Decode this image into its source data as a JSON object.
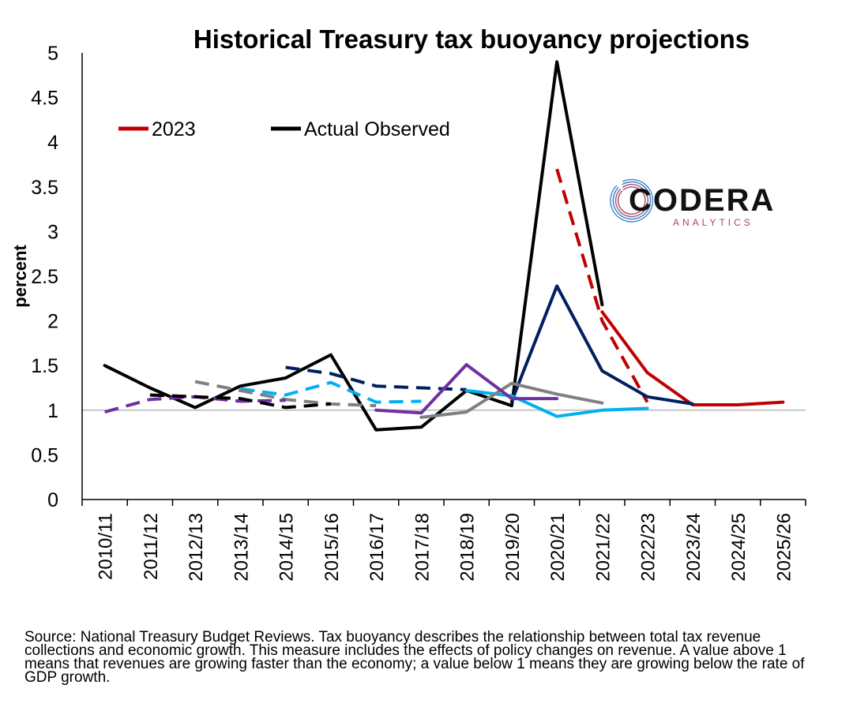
{
  "chart_data": {
    "type": "line",
    "title": "Historical Treasury tax buoyancy projections",
    "xlabel": "",
    "ylabel": "percent",
    "ylim": [
      0,
      5
    ],
    "yticks": [
      "0",
      "0.5",
      "1",
      "1.5",
      "2",
      "2.5",
      "3",
      "3.5",
      "4",
      "4.5",
      "5"
    ],
    "categories": [
      "2010/11",
      "2011/12",
      "2012/13",
      "2013/14",
      "2014/15",
      "2015/16",
      "2016/17",
      "2017/18",
      "2018/19",
      "2019/20",
      "2020/21",
      "2021/22",
      "2022/23",
      "2023/24",
      "2024/25",
      "2025/26"
    ],
    "legend": {
      "position": "top-left",
      "entries": [
        "2023",
        "Actual Observed"
      ]
    },
    "reference_line": {
      "value": 1,
      "color": "#c8c8c8"
    },
    "series": [
      {
        "name": "Actual Observed",
        "color": "#000000",
        "segments": [
          {
            "style": "solid",
            "points": [
              [
                0,
                1.5
              ],
              [
                1,
                1.25
              ],
              [
                2,
                1.03
              ],
              [
                3,
                1.27
              ],
              [
                4,
                1.36
              ],
              [
                5,
                1.62
              ],
              [
                6,
                0.78
              ],
              [
                7,
                0.81
              ],
              [
                8,
                1.22
              ],
              [
                9,
                1.05
              ],
              [
                10,
                4.9
              ],
              [
                11,
                2.18
              ]
            ]
          }
        ]
      },
      {
        "name": "2023",
        "color": "#c00000",
        "segments": [
          {
            "style": "dashed",
            "points": [
              [
                10,
                3.7
              ],
              [
                11,
                2.0
              ],
              [
                12,
                1.09
              ]
            ]
          },
          {
            "style": "solid",
            "points": [
              [
                11,
                2.1
              ],
              [
                12,
                1.42
              ],
              [
                13,
                1.06
              ],
              [
                14,
                1.06
              ],
              [
                15,
                1.09
              ]
            ]
          }
        ]
      },
      {
        "color": "#002060",
        "segments": [
          {
            "style": "dashed",
            "points": [
              [
                4,
                1.48
              ],
              [
                5,
                1.41
              ],
              [
                6,
                1.27
              ],
              [
                7,
                1.25
              ],
              [
                8,
                1.23
              ]
            ]
          },
          {
            "style": "solid",
            "points": [
              [
                9,
                1.1
              ],
              [
                10,
                2.39
              ],
              [
                11,
                1.44
              ],
              [
                12,
                1.15
              ],
              [
                13,
                1.07
              ]
            ]
          }
        ]
      },
      {
        "color": "#00b0f0",
        "segments": [
          {
            "style": "dashed",
            "points": [
              [
                3,
                1.24
              ],
              [
                4,
                1.17
              ],
              [
                5,
                1.31
              ],
              [
                6,
                1.09
              ],
              [
                7,
                1.1
              ]
            ]
          },
          {
            "style": "solid",
            "points": [
              [
                8,
                1.22
              ],
              [
                9,
                1.16
              ],
              [
                10,
                0.93
              ],
              [
                11,
                1.0
              ],
              [
                12,
                1.02
              ]
            ]
          }
        ]
      },
      {
        "color": "#808080",
        "segments": [
          {
            "style": "dashed",
            "points": [
              [
                2,
                1.32
              ],
              [
                3,
                1.22
              ],
              [
                4,
                1.12
              ],
              [
                5,
                1.07
              ],
              [
                6,
                1.05
              ]
            ]
          },
          {
            "style": "solid",
            "points": [
              [
                7,
                0.92
              ],
              [
                8,
                0.98
              ],
              [
                9,
                1.3
              ],
              [
                10,
                1.18
              ],
              [
                11,
                1.08
              ]
            ]
          }
        ]
      },
      {
        "color": "#7030a0",
        "segments": [
          {
            "style": "dashed",
            "points": [
              [
                0,
                0.98
              ],
              [
                1,
                1.12
              ],
              [
                2,
                1.15
              ],
              [
                3,
                1.1
              ],
              [
                4,
                1.11
              ]
            ]
          },
          {
            "style": "solid",
            "points": [
              [
                6,
                1.0
              ],
              [
                7,
                0.97
              ],
              [
                8,
                1.51
              ],
              [
                9,
                1.13
              ],
              [
                10,
                1.13
              ]
            ]
          }
        ]
      },
      {
        "color": "#000000",
        "segments": [
          {
            "style": "dashed",
            "points": [
              [
                1,
                1.17
              ],
              [
                2,
                1.15
              ],
              [
                3,
                1.13
              ],
              [
                4,
                1.03
              ],
              [
                5,
                1.07
              ]
            ]
          }
        ]
      }
    ]
  },
  "logo": {
    "name": "CODERA",
    "tagline": "ANALYTICS"
  },
  "source_note": "Source: National Treasury Budget Reviews. Tax buoyancy describes the relationship between total tax revenue collections and economic growth. This measure includes the effects of policy changes on revenue. A value above 1 means that revenues are growing faster than the economy; a value below 1 means they are growing below the rate of GDP growth."
}
